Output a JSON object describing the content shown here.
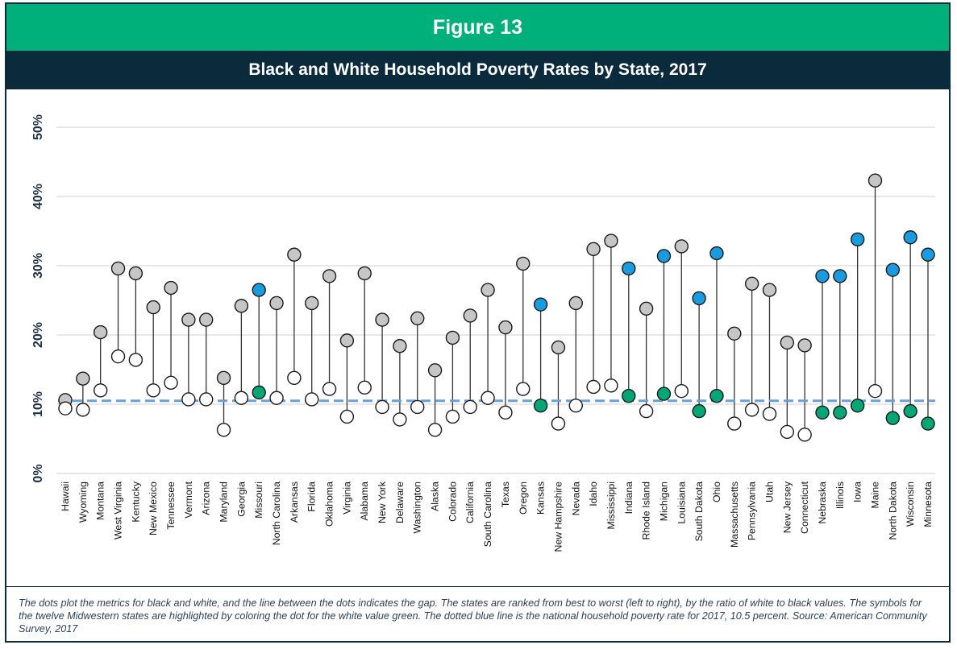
{
  "figure_label": "Figure 13",
  "title": "Black and White Household Poverty Rates by State, 2017",
  "caption": "The dots plot the metrics for black and white, and the line between the dots indicates the gap. The states are ranked from best to worst (left to right), by the ratio of white to black values. The symbols for the twelve Midwestern states are highlighted by coloring the dot for the white value green. The dotted blue line is the national household poverty rate for 2017, 10.5 percent. Source: American Community Survey, 2017",
  "colors": {
    "header_green": "#00b07b",
    "title_navy": "#0b2a3c",
    "black_dot_default": "#c6c6c6",
    "black_dot_midwest": "#1a9be0",
    "white_dot_default": "#ffffff",
    "white_dot_midwest": "#00a676",
    "national_line": "#6a9fd8",
    "gridline": "#d9d9d9"
  },
  "chart_data": {
    "type": "dot-range",
    "title": "Black and White Household Poverty Rates by State, 2017",
    "ylim": [
      0,
      50
    ],
    "yticks": [
      "0%",
      "10%",
      "20%",
      "30%",
      "40%",
      "50%"
    ],
    "grid": true,
    "national_rate": 10.5,
    "states": [
      {
        "name": "Hawaii",
        "black": 10.6,
        "white": 9.4,
        "midwest": false
      },
      {
        "name": "Wyoming",
        "black": 13.7,
        "white": 9.2,
        "midwest": false
      },
      {
        "name": "Montana",
        "black": 20.4,
        "white": 12.0,
        "midwest": false
      },
      {
        "name": "West Virginia",
        "black": 29.6,
        "white": 16.9,
        "midwest": false
      },
      {
        "name": "Kentucky",
        "black": 28.9,
        "white": 16.4,
        "midwest": false
      },
      {
        "name": "New Mexico",
        "black": 24.0,
        "white": 12.0,
        "midwest": false
      },
      {
        "name": "Tennessee",
        "black": 26.8,
        "white": 13.1,
        "midwest": false
      },
      {
        "name": "Vermont",
        "black": 22.2,
        "white": 10.7,
        "midwest": false
      },
      {
        "name": "Arizona",
        "black": 22.2,
        "white": 10.7,
        "midwest": false
      },
      {
        "name": "Maryland",
        "black": 13.8,
        "white": 6.3,
        "midwest": false
      },
      {
        "name": "Georgia",
        "black": 24.2,
        "white": 10.9,
        "midwest": false
      },
      {
        "name": "Missouri",
        "black": 26.5,
        "white": 11.7,
        "midwest": true
      },
      {
        "name": "North Carolina",
        "black": 24.6,
        "white": 10.9,
        "midwest": false
      },
      {
        "name": "Arkansas",
        "black": 31.6,
        "white": 13.8,
        "midwest": false
      },
      {
        "name": "Florida",
        "black": 24.6,
        "white": 10.7,
        "midwest": false
      },
      {
        "name": "Oklahoma",
        "black": 28.5,
        "white": 12.2,
        "midwest": false
      },
      {
        "name": "Virginia",
        "black": 19.2,
        "white": 8.2,
        "midwest": false
      },
      {
        "name": "Alabama",
        "black": 28.9,
        "white": 12.4,
        "midwest": false
      },
      {
        "name": "New York",
        "black": 22.2,
        "white": 9.6,
        "midwest": false
      },
      {
        "name": "Delaware",
        "black": 18.4,
        "white": 7.8,
        "midwest": false
      },
      {
        "name": "Washington",
        "black": 22.4,
        "white": 9.6,
        "midwest": false
      },
      {
        "name": "Alaska",
        "black": 14.9,
        "white": 6.3,
        "midwest": false
      },
      {
        "name": "Colorado",
        "black": 19.6,
        "white": 8.2,
        "midwest": false
      },
      {
        "name": "California",
        "black": 22.8,
        "white": 9.6,
        "midwest": false
      },
      {
        "name": "South Carolina",
        "black": 26.5,
        "white": 10.9,
        "midwest": false
      },
      {
        "name": "Texas",
        "black": 21.1,
        "white": 8.8,
        "midwest": false
      },
      {
        "name": "Oregon",
        "black": 30.3,
        "white": 12.2,
        "midwest": false
      },
      {
        "name": "Kansas",
        "black": 24.4,
        "white": 9.8,
        "midwest": true
      },
      {
        "name": "New Hampshire",
        "black": 18.2,
        "white": 7.2,
        "midwest": false
      },
      {
        "name": "Nevada",
        "black": 24.6,
        "white": 9.8,
        "midwest": false
      },
      {
        "name": "Idaho",
        "black": 32.4,
        "white": 12.5,
        "midwest": false
      },
      {
        "name": "Mississippi",
        "black": 33.6,
        "white": 12.7,
        "midwest": false
      },
      {
        "name": "Indiana",
        "black": 29.6,
        "white": 11.2,
        "midwest": true
      },
      {
        "name": "Rhode Island",
        "black": 23.8,
        "white": 9.0,
        "midwest": false
      },
      {
        "name": "Michigan",
        "black": 31.4,
        "white": 11.5,
        "midwest": true
      },
      {
        "name": "Louisiana",
        "black": 32.8,
        "white": 11.9,
        "midwest": false
      },
      {
        "name": "South Dakota",
        "black": 25.3,
        "white": 9.0,
        "midwest": true
      },
      {
        "name": "Ohio",
        "black": 31.8,
        "white": 11.2,
        "midwest": true
      },
      {
        "name": "Massachusetts",
        "black": 20.2,
        "white": 7.2,
        "midwest": false
      },
      {
        "name": "Pennsylvania",
        "black": 27.4,
        "white": 9.2,
        "midwest": false
      },
      {
        "name": "Utah",
        "black": 26.5,
        "white": 8.6,
        "midwest": false
      },
      {
        "name": "New Jersey",
        "black": 18.9,
        "white": 6.0,
        "midwest": false
      },
      {
        "name": "Connecticut",
        "black": 18.5,
        "white": 5.6,
        "midwest": false
      },
      {
        "name": "Nebraska",
        "black": 28.5,
        "white": 8.8,
        "midwest": true
      },
      {
        "name": "Illinois",
        "black": 28.5,
        "white": 8.8,
        "midwest": true
      },
      {
        "name": "Iowa",
        "black": 33.8,
        "white": 9.8,
        "midwest": true
      },
      {
        "name": "Maine",
        "black": 42.3,
        "white": 11.9,
        "midwest": false
      },
      {
        "name": "North Dakota",
        "black": 29.4,
        "white": 8.0,
        "midwest": true
      },
      {
        "name": "Wisconsin",
        "black": 34.1,
        "white": 9.0,
        "midwest": true
      },
      {
        "name": "Minnesota",
        "black": 31.6,
        "white": 7.2,
        "midwest": true
      }
    ]
  }
}
